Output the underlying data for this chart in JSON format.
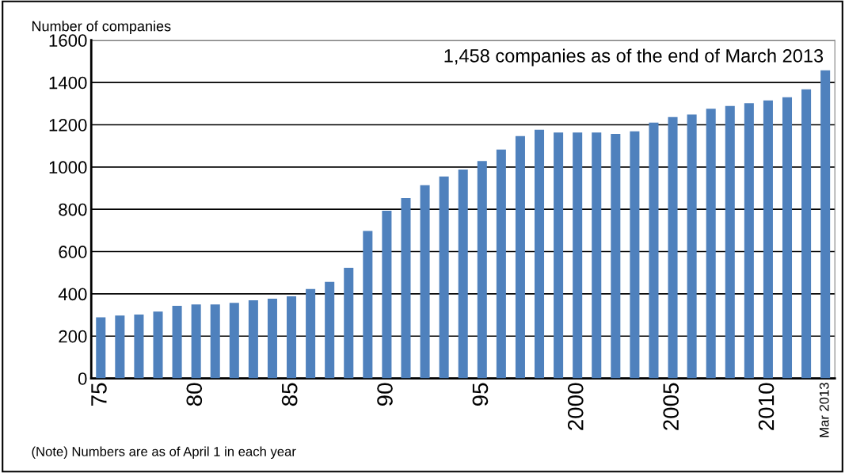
{
  "chart_data": {
    "type": "bar",
    "ylabel": "Number of companies",
    "categories": [
      "75",
      null,
      null,
      null,
      null,
      "80",
      null,
      null,
      null,
      null,
      "85",
      null,
      null,
      null,
      null,
      "90",
      null,
      null,
      null,
      null,
      "95",
      null,
      null,
      null,
      null,
      "2000",
      null,
      null,
      null,
      null,
      "2005",
      null,
      null,
      null,
      null,
      "2010",
      null,
      null,
      "Mar 2013"
    ],
    "values": [
      289,
      297,
      302,
      316,
      343,
      350,
      350,
      357,
      370,
      377,
      388,
      423,
      457,
      523,
      698,
      793,
      853,
      914,
      955,
      988,
      1028,
      1083,
      1146,
      1176,
      1163,
      1163,
      1163,
      1157,
      1169,
      1210,
      1236,
      1249,
      1276,
      1289,
      1302,
      1315,
      1330,
      1368,
      1458
    ],
    "color": "#4f81bd",
    "ylim": [
      0,
      1600
    ],
    "yticks": [
      0,
      200,
      400,
      600,
      800,
      1000,
      1200,
      1400,
      1600
    ],
    "grid": "y",
    "annotations": [
      "1,458 companies as of the end of March 2013",
      "(Note) Numbers are as of April 1 in each year"
    ]
  }
}
